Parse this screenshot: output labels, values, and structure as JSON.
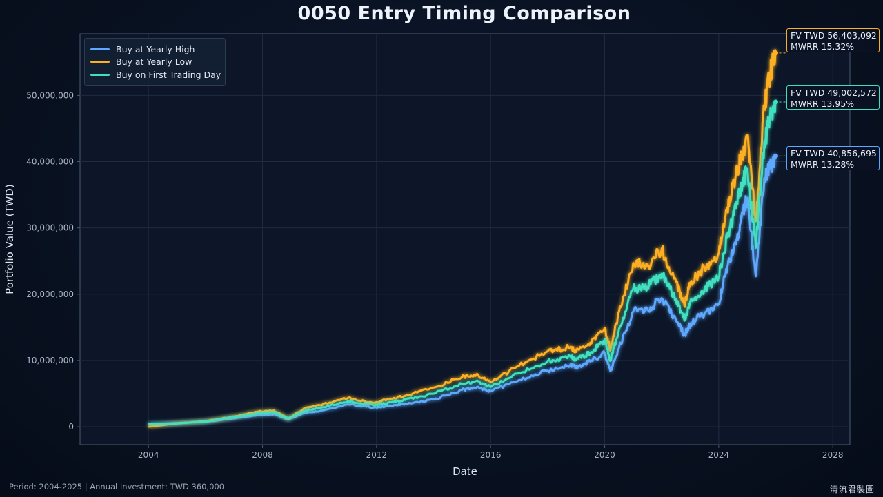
{
  "chart_data": {
    "type": "line",
    "title": "0050 Entry Timing Comparison",
    "xlabel": "Date",
    "ylabel": "Portfolio Value (TWD)",
    "xlim": [
      2001.6,
      2028.6
    ],
    "ylim": [
      -2700000,
      59300000
    ],
    "x_ticks": [
      "2004",
      "2008",
      "2012",
      "2016",
      "2020",
      "2024",
      "2028"
    ],
    "y_ticks": [
      "0",
      "10,000,000",
      "20,000,000",
      "30,000,000",
      "40,000,000",
      "50,000,000"
    ],
    "grid": true,
    "legend_position": "top-left",
    "series": [
      {
        "name": "Buy at Yearly High",
        "color": "#5fa8ff",
        "x": [
          2004.0,
          2005.0,
          2006.0,
          2007.0,
          2007.8,
          2008.4,
          2008.9,
          2009.5,
          2010.0,
          2011.0,
          2011.9,
          2012.5,
          2013.0,
          2014.0,
          2015.0,
          2015.5,
          2016.0,
          2017.0,
          2018.0,
          2018.8,
          2019.0,
          2019.5,
          2020.0,
          2020.2,
          2020.5,
          2021.0,
          2021.5,
          2022.0,
          2022.5,
          2022.8,
          2023.0,
          2023.5,
          2024.0,
          2024.3,
          2024.6,
          2024.8,
          2025.0,
          2025.3,
          2025.6,
          2025.8,
          2026.0
        ],
        "values": [
          350000,
          550000,
          750000,
          1250000,
          1750000,
          1900000,
          1100000,
          2100000,
          2350000,
          3400000,
          2900000,
          3150000,
          3450000,
          4100000,
          5600000,
          5900000,
          5350000,
          7050000,
          8450000,
          9300000,
          9000000,
          9850000,
          11100000,
          8400000,
          11900000,
          17400000,
          17700000,
          19400000,
          16100000,
          13800000,
          15600000,
          17100000,
          18600000,
          24000000,
          27500000,
          31500000,
          34500000,
          22700000,
          37500000,
          39000000,
          40856695
        ]
      },
      {
        "name": "Buy at Yearly Low",
        "color": "#ffb020",
        "x": [
          2004.0,
          2005.0,
          2006.0,
          2007.0,
          2007.8,
          2008.4,
          2008.9,
          2009.5,
          2010.0,
          2011.0,
          2011.9,
          2012.5,
          2013.0,
          2014.0,
          2015.0,
          2015.5,
          2016.0,
          2017.0,
          2018.0,
          2018.8,
          2019.0,
          2019.5,
          2020.0,
          2020.2,
          2020.5,
          2021.0,
          2021.5,
          2022.0,
          2022.5,
          2022.8,
          2023.0,
          2023.5,
          2024.0,
          2024.3,
          2024.6,
          2024.8,
          2025.0,
          2025.3,
          2025.6,
          2025.8,
          2026.0
        ],
        "values": [
          0,
          500000,
          850000,
          1550000,
          2250000,
          2450000,
          1250000,
          2800000,
          3250000,
          4350000,
          3600000,
          4250000,
          4650000,
          5900000,
          7500000,
          7900000,
          6700000,
          9200000,
          11400000,
          12000000,
          11300000,
          12700000,
          14900000,
          11500000,
          17300000,
          24700000,
          24300000,
          26800000,
          22000000,
          18200000,
          21600000,
          24000000,
          26200000,
          33000000,
          38000000,
          41000000,
          43500000,
          31000000,
          48500000,
          53500000,
          56403092
        ]
      },
      {
        "name": "Buy on First Trading Day",
        "color": "#3fe0c0",
        "x": [
          2004.0,
          2005.0,
          2006.0,
          2007.0,
          2007.8,
          2008.4,
          2008.9,
          2009.5,
          2010.0,
          2011.0,
          2011.9,
          2012.5,
          2013.0,
          2014.0,
          2015.0,
          2015.5,
          2016.0,
          2017.0,
          2018.0,
          2018.8,
          2019.0,
          2019.5,
          2020.0,
          2020.2,
          2020.5,
          2021.0,
          2021.5,
          2022.0,
          2022.5,
          2022.8,
          2023.0,
          2023.5,
          2024.0,
          2024.3,
          2024.6,
          2024.8,
          2025.0,
          2025.3,
          2025.6,
          2025.8,
          2026.0
        ],
        "values": [
          400000,
          500000,
          800000,
          1450000,
          2000000,
          2200000,
          1200000,
          2450000,
          2800000,
          3850000,
          3250000,
          3700000,
          4050000,
          5000000,
          6500000,
          6900000,
          6000000,
          8100000,
          9900000,
          10600000,
          10100000,
          11200000,
          13100000,
          10000000,
          14700000,
          20800000,
          21100000,
          23100000,
          19300000,
          16000000,
          18900000,
          20700000,
          22600000,
          28600000,
          33000000,
          36500000,
          39000000,
          27000000,
          43000000,
          46500000,
          49002572
        ]
      }
    ],
    "annotations": [
      {
        "series": "Buy at Yearly Low",
        "line1": "FV  TWD 56,403,092",
        "line2": "MWRR  15.32%",
        "color": "#ffb020"
      },
      {
        "series": "Buy on First Trading Day",
        "line1": "FV  TWD 49,002,572",
        "line2": "MWRR  13.95%",
        "color": "#3fe0c0"
      },
      {
        "series": "Buy at Yearly High",
        "line1": "FV  TWD 40,856,695",
        "line2": "MWRR  13.28%",
        "color": "#5fa8ff"
      }
    ]
  },
  "footer": {
    "left": "Period: 2004-2025  |  Annual Investment: TWD 360,000",
    "right": "清流君製圖"
  },
  "colors": {
    "background": "#08101f",
    "plot_background": "#0c1628",
    "grid": "#1e2b42",
    "axis": "#4a5a74"
  }
}
